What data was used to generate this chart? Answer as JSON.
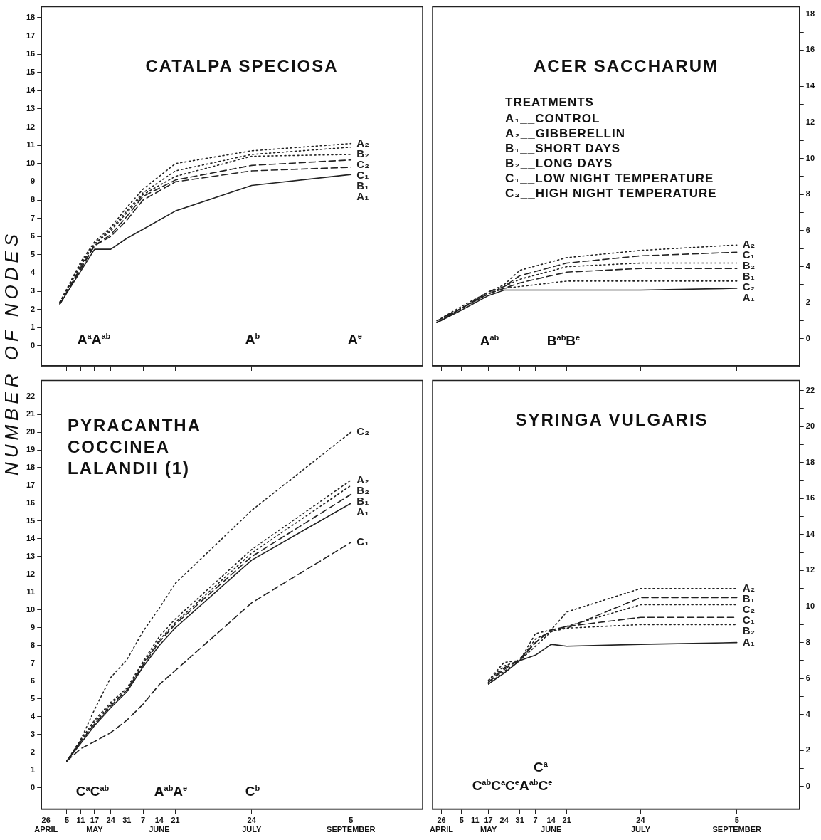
{
  "chart_data": [
    {
      "type": "line",
      "title": "CATALPA SPECIOSA",
      "x": [
        "--05-02",
        "--05-11",
        "--05-17",
        "--05-24",
        "--05-31",
        "--06-07",
        "--06-21",
        "--07-24",
        "--09-05"
      ],
      "series": [
        {
          "name": "A₁",
          "color": "#222222",
          "line_style": "solid",
          "values": [
            2.3,
            4.1,
            5.3,
            5.3,
            5.9,
            6.4,
            7.4,
            8.8,
            9.4
          ]
        },
        {
          "name": "A₂",
          "color": "#222222",
          "line_style": "dotted",
          "values": [
            2.4,
            4.6,
            5.7,
            6.5,
            7.6,
            8.6,
            10.0,
            10.7,
            11.1
          ]
        },
        {
          "name": "B₁",
          "color": "#222222",
          "line_style": "dashed",
          "values": [
            2.3,
            4.3,
            5.5,
            6.0,
            6.9,
            8.0,
            9.0,
            9.6,
            9.8
          ]
        },
        {
          "name": "B₂",
          "color": "#222222",
          "line_style": "dotted",
          "values": [
            2.4,
            4.5,
            5.6,
            6.4,
            7.4,
            8.4,
            9.6,
            10.5,
            10.9
          ]
        },
        {
          "name": "C₁",
          "color": "#222222",
          "line_style": "dashed",
          "values": [
            2.3,
            4.2,
            5.5,
            6.1,
            7.1,
            8.2,
            9.1,
            9.9,
            10.2
          ]
        },
        {
          "name": "C₂",
          "color": "#222222",
          "line_style": "dotted",
          "values": [
            2.4,
            4.4,
            5.6,
            6.3,
            7.3,
            8.3,
            9.3,
            10.4,
            10.5
          ]
        }
      ],
      "xlim": [
        "--04-24",
        "--10-06"
      ],
      "xticks": [
        "--04-26",
        "--05-05",
        "--05-11",
        "--05-17",
        "--05-24",
        "--05-31",
        "--06-07",
        "--06-14",
        "--06-21",
        "--07-24",
        "--09-05"
      ],
      "ylim": [
        -1.1,
        18.6
      ],
      "yticks": [
        0,
        1,
        2,
        3,
        4,
        5,
        6,
        7,
        8,
        9,
        10,
        11,
        12,
        13,
        14,
        15,
        16,
        17,
        18
      ],
      "tick_labels": "y",
      "grid": false,
      "legend": false,
      "annotations": [
        "A$^{a}$A$^{ab}$",
        "A$^{b}$",
        "A$^{e}$"
      ]
    },
    {
      "type": "line",
      "title": "ACER SACCHARUM",
      "x": [
        "--04-24",
        "--05-05",
        "--05-17",
        "--05-24",
        "--05-31",
        "--06-21",
        "--07-24",
        "--09-05"
      ],
      "series": [
        {
          "name": "A₁",
          "color": "#222222",
          "line_style": "solid",
          "values": [
            0.9,
            1.6,
            2.4,
            2.7,
            2.7,
            2.7,
            2.7,
            2.8
          ]
        },
        {
          "name": "A₂",
          "color": "#222222",
          "line_style": "dotted",
          "values": [
            1.0,
            1.8,
            2.6,
            3.0,
            3.8,
            4.5,
            4.9,
            5.2
          ]
        },
        {
          "name": "B₁",
          "color": "#222222",
          "line_style": "dashed",
          "values": [
            0.9,
            1.7,
            2.5,
            2.8,
            3.1,
            3.7,
            3.9,
            3.9
          ]
        },
        {
          "name": "B₂",
          "color": "#222222",
          "line_style": "dotted",
          "values": [
            0.9,
            1.7,
            2.5,
            2.9,
            3.3,
            4.0,
            4.2,
            4.2
          ]
        },
        {
          "name": "C₁",
          "color": "#222222",
          "line_style": "dashed",
          "values": [
            1.0,
            1.7,
            2.6,
            2.9,
            3.5,
            4.2,
            4.6,
            4.8
          ]
        },
        {
          "name": "C₂",
          "color": "#222222",
          "line_style": "dotted",
          "values": [
            0.9,
            1.7,
            2.5,
            2.8,
            2.9,
            3.2,
            3.2,
            3.2
          ]
        }
      ],
      "xlim": [
        "--04-22",
        "--10-03"
      ],
      "xticks": [
        "--04-26",
        "--05-05",
        "--05-11",
        "--05-17",
        "--05-24",
        "--05-31",
        "--06-07",
        "--06-14",
        "--06-21",
        "--07-24",
        "--09-05"
      ],
      "ylim": [
        -1.5,
        18.4
      ],
      "yticks": [
        0,
        {
          "value": 1,
          "label": null
        },
        2,
        {
          "value": 3,
          "label": null
        },
        4,
        {
          "value": 5,
          "label": null
        },
        6,
        {
          "value": 7,
          "label": null
        },
        8,
        {
          "value": 9,
          "label": null
        },
        10,
        {
          "value": 11,
          "label": null
        },
        12,
        {
          "value": 13,
          "label": null
        },
        14,
        {
          "value": 15,
          "label": null
        },
        16,
        {
          "value": 17,
          "label": null
        },
        18
      ],
      "tick_labels": "y",
      "grid": false,
      "legend": false,
      "annotations": [
        "TREATMENTS",
        "A₁__CONTROL",
        "A₂__GIBBERELLIN",
        "B₁__SHORT DAYS",
        "B₂__LONG DAYS",
        "C₁__LOW NIGHT TEMPERATURE",
        "C₂__HIGH NIGHT TEMPERATURE",
        "A$^{ab}$",
        "B$^{ab}$B$^{e}$"
      ]
    },
    {
      "type": "line",
      "title": "PYRACANTHA COCCINEA LALANDII (1)",
      "ylabel": "NUMBER OF NODES",
      "x": [
        "--05-05",
        "--05-11",
        "--05-17",
        "--05-24",
        "--05-31",
        "--06-07",
        "--06-14",
        "--06-21",
        "--07-24",
        "--09-05"
      ],
      "series": [
        {
          "name": "A₁",
          "color": "#222222",
          "line_style": "solid",
          "values": [
            1.5,
            2.5,
            3.5,
            4.5,
            5.4,
            6.8,
            8.0,
            9.0,
            12.8,
            16.0
          ]
        },
        {
          "name": "A₂",
          "color": "#222222",
          "line_style": "dotted",
          "values": [
            1.5,
            2.7,
            3.8,
            4.8,
            5.6,
            7.1,
            8.5,
            9.5,
            13.4,
            17.3
          ]
        },
        {
          "name": "B₁",
          "color": "#222222",
          "line_style": "dashed",
          "values": [
            1.5,
            2.6,
            3.6,
            4.6,
            5.5,
            6.9,
            8.2,
            9.2,
            13.0,
            16.5
          ]
        },
        {
          "name": "B₂",
          "color": "#222222",
          "line_style": "dotted",
          "values": [
            1.5,
            2.6,
            3.7,
            4.7,
            5.5,
            7.0,
            8.3,
            9.3,
            13.2,
            17.0
          ]
        },
        {
          "name": "C₁",
          "color": "#222222",
          "line_style": "dashed",
          "values": [
            1.5,
            2.2,
            2.6,
            3.1,
            3.8,
            4.7,
            5.8,
            6.6,
            10.4,
            13.8
          ]
        },
        {
          "name": "C₂",
          "color": "#222222",
          "line_style": "dotted",
          "values": [
            1.5,
            2.7,
            4.4,
            6.2,
            7.2,
            8.8,
            10.1,
            11.5,
            15.6,
            20.0
          ]
        }
      ],
      "xlim": [
        "--04-24",
        "--10-06"
      ],
      "xticks": [
        {
          "value": "--04-26",
          "label": "26\nAPRIL"
        },
        {
          "value": "--05-05",
          "label": "5"
        },
        {
          "value": "--05-11",
          "label": "11"
        },
        {
          "value": "--05-17",
          "label": "17\nMAY"
        },
        {
          "value": "--05-24",
          "label": "24"
        },
        {
          "value": "--05-31",
          "label": "31"
        },
        {
          "value": "--06-07",
          "label": "7"
        },
        {
          "value": "--06-14",
          "label": "14\nJUNE"
        },
        {
          "value": "--06-21",
          "label": "21"
        },
        {
          "value": "--07-24",
          "label": "24\nJULY"
        },
        {
          "value": "--09-05",
          "label": "5\nSEPTEMBER"
        }
      ],
      "ylim": [
        -1.2,
        22.9
      ],
      "yticks": [
        0,
        1,
        2,
        3,
        4,
        5,
        6,
        7,
        8,
        9,
        10,
        11,
        12,
        13,
        14,
        15,
        16,
        17,
        18,
        19,
        20,
        21,
        22
      ],
      "grid": false,
      "legend": false,
      "annotations": [
        "C$^{a}$C$^{ab}$",
        "A$^{ab}$A$^{e}$",
        "C$^{b}$"
      ]
    },
    {
      "type": "line",
      "title": "SYRINGA VULGARIS",
      "x": [
        "--05-17",
        "--05-24",
        "--05-31",
        "--06-07",
        "--06-14",
        "--06-21",
        "--07-24",
        "--09-05"
      ],
      "series": [
        {
          "name": "A₁",
          "color": "#222222",
          "line_style": "solid",
          "values": [
            5.7,
            6.3,
            7.0,
            7.3,
            7.9,
            7.8,
            7.9,
            8.0
          ]
        },
        {
          "name": "A₂",
          "color": "#222222",
          "line_style": "dotted",
          "values": [
            5.9,
            6.9,
            7.0,
            8.5,
            8.7,
            9.7,
            11.0,
            11.0
          ]
        },
        {
          "name": "B₁",
          "color": "#222222",
          "line_style": "dashed",
          "values": [
            5.8,
            6.6,
            7.0,
            8.0,
            8.7,
            8.8,
            10.5,
            10.5
          ]
        },
        {
          "name": "B₂",
          "color": "#222222",
          "line_style": "dotted",
          "values": [
            5.7,
            6.4,
            7.0,
            7.8,
            8.6,
            8.8,
            9.0,
            9.0
          ]
        },
        {
          "name": "C₁",
          "color": "#222222",
          "line_style": "dashed",
          "values": [
            5.8,
            6.5,
            7.1,
            8.0,
            8.7,
            8.9,
            9.4,
            9.4
          ]
        },
        {
          "name": "C₂",
          "color": "#222222",
          "line_style": "dotted",
          "values": [
            5.9,
            6.7,
            7.0,
            8.2,
            8.6,
            8.9,
            10.1,
            10.1
          ]
        }
      ],
      "xlim": [
        "--04-22",
        "--10-03"
      ],
      "xticks": [
        {
          "value": "--04-26",
          "label": "26\nAPRIL"
        },
        {
          "value": "--05-05",
          "label": "5"
        },
        {
          "value": "--05-11",
          "label": "11"
        },
        {
          "value": "--05-17",
          "label": "17\nMAY"
        },
        {
          "value": "--05-24",
          "label": "24"
        },
        {
          "value": "--05-31",
          "label": "31"
        },
        {
          "value": "--06-07",
          "label": "7"
        },
        {
          "value": "--06-14",
          "label": "14\nJUNE"
        },
        {
          "value": "--06-21",
          "label": "21"
        },
        {
          "value": "--07-24",
          "label": "24\nJULY"
        },
        {
          "value": "--09-05",
          "label": "5\nSEPTEMBER"
        }
      ],
      "ylim": [
        -1.25,
        22.55
      ],
      "yticks": [
        0,
        {
          "value": 1,
          "label": null
        },
        2,
        {
          "value": 3,
          "label": null
        },
        4,
        {
          "value": 5,
          "label": null
        },
        6,
        {
          "value": 7,
          "label": null
        },
        8,
        {
          "value": 9,
          "label": null
        },
        10,
        {
          "value": 11,
          "label": null
        },
        12,
        {
          "value": 13,
          "label": null
        },
        14,
        {
          "value": 15,
          "label": null
        },
        16,
        {
          "value": 17,
          "label": null
        },
        18,
        {
          "value": 19,
          "label": null
        },
        20,
        {
          "value": 21,
          "label": null
        },
        22
      ],
      "grid": false,
      "legend": false,
      "annotations": [
        "C$^{a}$",
        "C$^{ab}$C$^{a}$C$^{e}$A$^{ab}$C$^{e}$"
      ]
    }
  ]
}
